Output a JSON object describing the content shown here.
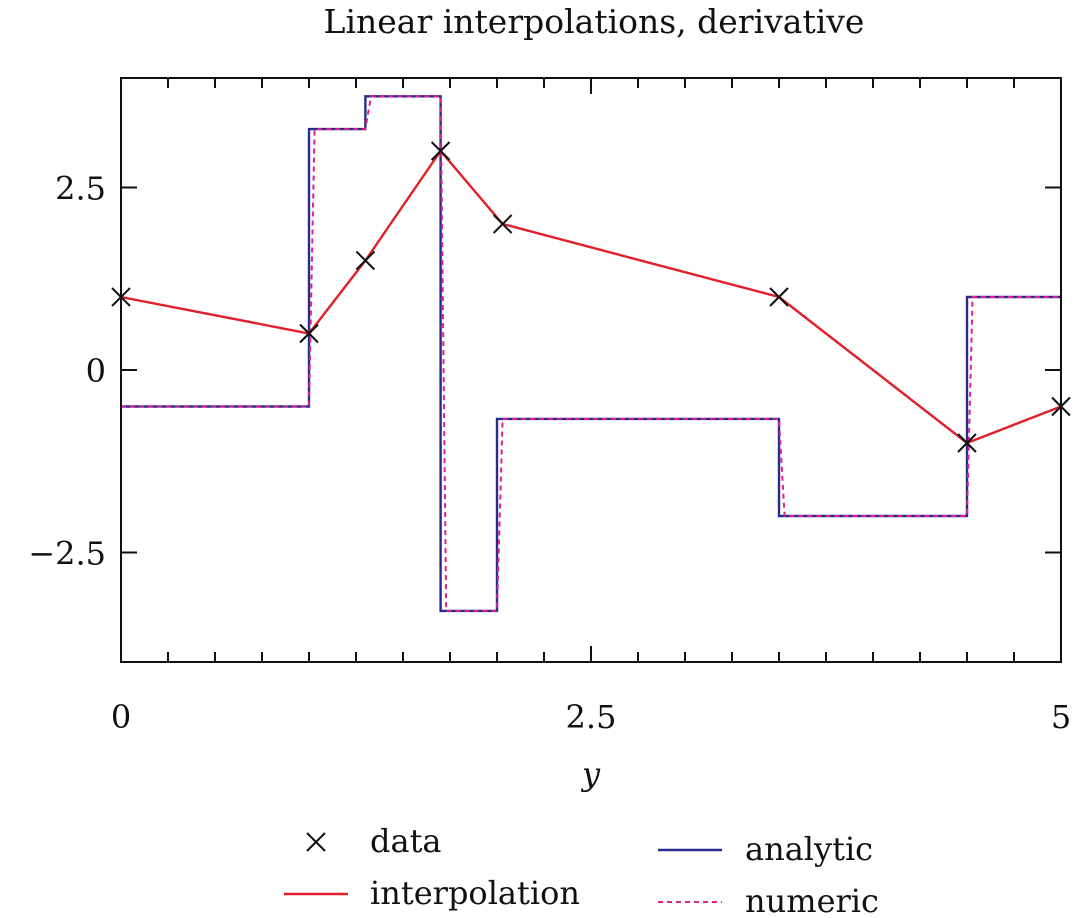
{
  "chart_data": {
    "type": "line",
    "title": "Linear interpolations, derivative",
    "xlabel": "y",
    "ylabel": "",
    "xlim": [
      0,
      5
    ],
    "ylim": [
      -4,
      4
    ],
    "x_ticks": [
      0,
      2.5,
      5
    ],
    "x_tick_labels": [
      "0",
      "2.5",
      "5"
    ],
    "y_ticks": [
      -2.5,
      0,
      2.5
    ],
    "y_tick_labels": [
      "−2.5",
      "0",
      "2.5"
    ],
    "grid": false,
    "legend_position": "bottom",
    "colors": {
      "data": "#111111",
      "interpolation": "#e0202a",
      "analytic": "#2a2a8c",
      "numeric": "#e0208c"
    },
    "series": [
      {
        "name": "data",
        "style": "markers",
        "x": [
          0,
          1,
          1.3,
          1.7,
          2.03,
          3.5,
          4.5,
          5
        ],
        "y": [
          1,
          0.5,
          1.5,
          3,
          2,
          1,
          -1,
          -0.5
        ]
      },
      {
        "name": "interpolation",
        "style": "solid",
        "x": [
          0,
          1,
          1.3,
          1.7,
          2.03,
          3.5,
          4.5,
          5
        ],
        "y": [
          1,
          0.5,
          1.5,
          3,
          2,
          1,
          -1,
          -0.5
        ]
      },
      {
        "name": "analytic",
        "style": "solid",
        "x": [
          0,
          1,
          1,
          1.3,
          1.3,
          1.7,
          1.7,
          2.0,
          2.0,
          3.5,
          3.5,
          4.5,
          4.5,
          5
        ],
        "y": [
          -0.5,
          -0.5,
          3.3,
          3.3,
          3.75,
          3.75,
          -3.3,
          -3.3,
          -0.67,
          -0.67,
          -2,
          -2,
          1,
          1
        ]
      },
      {
        "name": "numeric",
        "style": "dashed",
        "x": [
          0,
          1,
          1.03,
          1.3,
          1.33,
          1.7,
          1.73,
          2.0,
          2.03,
          3.5,
          3.53,
          4.5,
          4.53,
          5
        ],
        "y": [
          -0.5,
          -0.5,
          3.3,
          3.3,
          3.75,
          3.75,
          -3.3,
          -3.3,
          -0.67,
          -0.67,
          -2,
          -2,
          1,
          1
        ]
      }
    ],
    "legend": [
      {
        "key": "data",
        "label": "data",
        "marker": "x"
      },
      {
        "key": "interpolation",
        "label": "interpolation",
        "marker": "line"
      },
      {
        "key": "analytic",
        "label": "analytic",
        "marker": "line"
      },
      {
        "key": "numeric",
        "label": "numeric",
        "marker": "dashed"
      }
    ]
  }
}
